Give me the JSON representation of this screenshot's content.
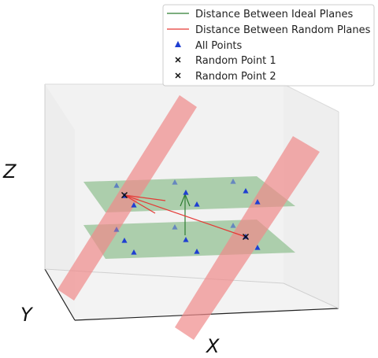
{
  "chart_data": {
    "type": "scatter",
    "axes": {
      "xlabel": "X",
      "ylabel": "Y",
      "zlabel": "Z"
    },
    "grid": false,
    "legend_position": "top-right",
    "legend": [
      {
        "label": "Distance Between Ideal Planes",
        "marker": "line",
        "color": "#2e7d32"
      },
      {
        "label": "Distance Between Random Planes",
        "marker": "line",
        "color": "#e53935"
      },
      {
        "label": "All Points",
        "marker": "triangle",
        "color": "#1f3fd1"
      },
      {
        "label": "Random Point 1",
        "marker": "x",
        "color": "#111111"
      },
      {
        "label": "Random Point 2",
        "marker": "x",
        "color": "#111111"
      }
    ],
    "colors": {
      "ideal_plane_fill": "#8fbf8f",
      "random_plane_fill": "#f08a8a",
      "ideal_distance": "#2e7d32",
      "random_distance": "#e53935",
      "points": "#1f3fd1",
      "random_points": "#111111"
    }
  }
}
